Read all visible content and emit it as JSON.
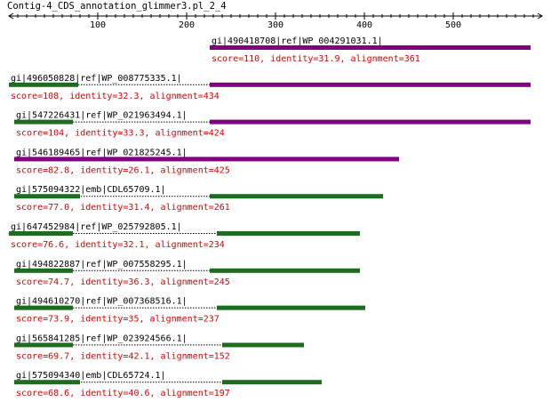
{
  "title": "Contig-4_CDS_annotation_glimmer3.pl_2_4",
  "ruler": {
    "min": 0,
    "max": 600,
    "ticks": [
      100,
      200,
      300,
      400,
      500
    ]
  },
  "colors": {
    "purple": "#800080",
    "green": "#1f6b1f",
    "score": "#dd0000",
    "text": "#000000"
  },
  "hits": [
    {
      "label": "gi|490418708|ref|WP_004291031.1|",
      "score": "score=110, identity=31.9, alignment=361",
      "start": 226,
      "end": 587,
      "aln_start": 226,
      "color": "purple"
    },
    {
      "label": "gi|496050828|ref|WP_008775335.1|",
      "score": "score=108, identity=32.3, alignment=434",
      "start": 0,
      "end": 587,
      "aln_start": 226,
      "color": "purple",
      "green_start": 0,
      "green_end": 78
    },
    {
      "label": "gi|547226431|ref|WP_021963494.1|",
      "score": "score=104, identity=33.3, alignment=424",
      "start": 6,
      "end": 587,
      "aln_start": 226,
      "color": "purple",
      "green_start": 6,
      "green_end": 72
    },
    {
      "label": "gi|546189465|ref|WP_021825245.1|",
      "score": "score=82.8, identity=26.1, alignment=425",
      "start": 6,
      "end": 439,
      "aln_start": 6,
      "color": "purple"
    },
    {
      "label": "gi|575094322|emb|CDL65709.1|",
      "score": "score=77.0, identity=31.4, alignment=261",
      "start": 6,
      "end": 421,
      "aln_start": 226,
      "color": "green",
      "green_start": 6,
      "green_end": 80
    },
    {
      "label": "gi|647452984|ref|WP_025792805.1|",
      "score": "score=76.6, identity=32.1, alignment=234",
      "start": 0,
      "end": 395,
      "aln_start": 234,
      "color": "green",
      "green_start": 0,
      "green_end": 72
    },
    {
      "label": "gi|494822887|ref|WP_007558295.1|",
      "score": "score=74.7, identity=36.3, alignment=245",
      "start": 6,
      "end": 395,
      "aln_start": 226,
      "color": "green",
      "green_start": 6,
      "green_end": 72
    },
    {
      "label": "gi|494610270|ref|WP_007368516.1|",
      "score": "score=73.9, identity=35, alignment=237",
      "start": 6,
      "end": 401,
      "aln_start": 234,
      "color": "green",
      "green_start": 6,
      "green_end": 72
    },
    {
      "label": "gi|565841285|ref|WP_023924566.1|",
      "score": "score=69.7, identity=42.1, alignment=152",
      "start": 6,
      "end": 332,
      "aln_start": 240,
      "color": "green",
      "green_start": 6,
      "green_end": 72
    },
    {
      "label": "gi|575094340|emb|CDL65724.1|",
      "score": "score=68.6, identity=40.6, alignment=197",
      "start": 6,
      "end": 352,
      "aln_start": 240,
      "color": "green",
      "green_start": 6,
      "green_end": 80
    }
  ]
}
